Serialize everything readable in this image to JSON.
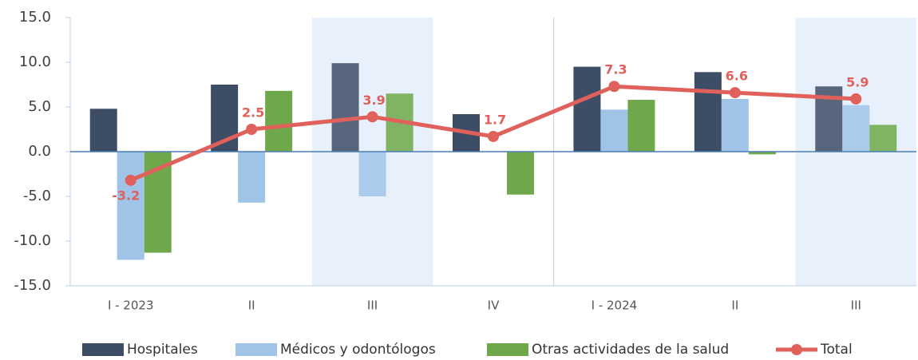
{
  "chart_data": {
    "type": "bar",
    "categories": [
      "I - 2023",
      "II",
      "III",
      "IV",
      "I - 2024",
      "II",
      "III"
    ],
    "series": [
      {
        "name": "Hospitales",
        "color": "#3e4d66",
        "values": [
          4.8,
          7.5,
          9.9,
          4.2,
          9.5,
          8.9,
          7.3
        ]
      },
      {
        "name": "Médicos y odontólogos",
        "color": "#9fc4e8",
        "values": [
          -12.1,
          -5.7,
          -5.0,
          0,
          4.7,
          5.9,
          5.2
        ]
      },
      {
        "name": "Otras actividades de la salud",
        "color": "#6fa84a",
        "values": [
          -11.3,
          6.8,
          6.5,
          -4.8,
          5.8,
          -0.3,
          3.0
        ]
      },
      {
        "name": "Total",
        "color": "#e0605c",
        "type": "line",
        "values": [
          -3.2,
          2.5,
          3.9,
          1.7,
          7.3,
          6.6,
          5.9
        ]
      }
    ],
    "ylim": [
      -15,
      15
    ],
    "yticks": [
      {
        "value": -15,
        "label": "-15.0"
      },
      {
        "value": -10,
        "label": "-10.0"
      },
      {
        "value": -5,
        "label": "-5.0"
      },
      {
        "value": 0,
        "label": "0.0"
      },
      {
        "value": 5,
        "label": "5.0"
      },
      {
        "value": 10,
        "label": "10.0"
      },
      {
        "value": 15,
        "label": "15.0"
      }
    ],
    "grid": false,
    "legend": "bottom"
  }
}
